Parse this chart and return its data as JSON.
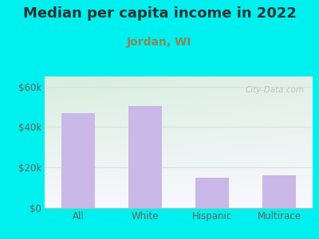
{
  "title": "Median per capita income in 2022",
  "subtitle": "Jordan, WI",
  "categories": [
    "All",
    "White",
    "Hispanic",
    "Multirace"
  ],
  "values": [
    47000,
    50500,
    15000,
    16000
  ],
  "bar_color": "#c9b8e8",
  "background_outer": "#00f0f0",
  "background_inner_top_left": "#d8eedd",
  "background_inner_bottom_right": "#f8f8ff",
  "title_color": "#333333",
  "subtitle_color": "#888855",
  "tick_color": "#666655",
  "yticks": [
    0,
    20000,
    40000,
    60000
  ],
  "ytick_labels": [
    "$0",
    "$20k",
    "$40k",
    "$60k"
  ],
  "ylim": [
    0,
    65000
  ],
  "title_fontsize": 13,
  "subtitle_fontsize": 10,
  "tick_fontsize": 8.5,
  "watermark_text": "City-Data.com",
  "watermark_color": "#bbbbbb",
  "grid_color": "#dddddd"
}
